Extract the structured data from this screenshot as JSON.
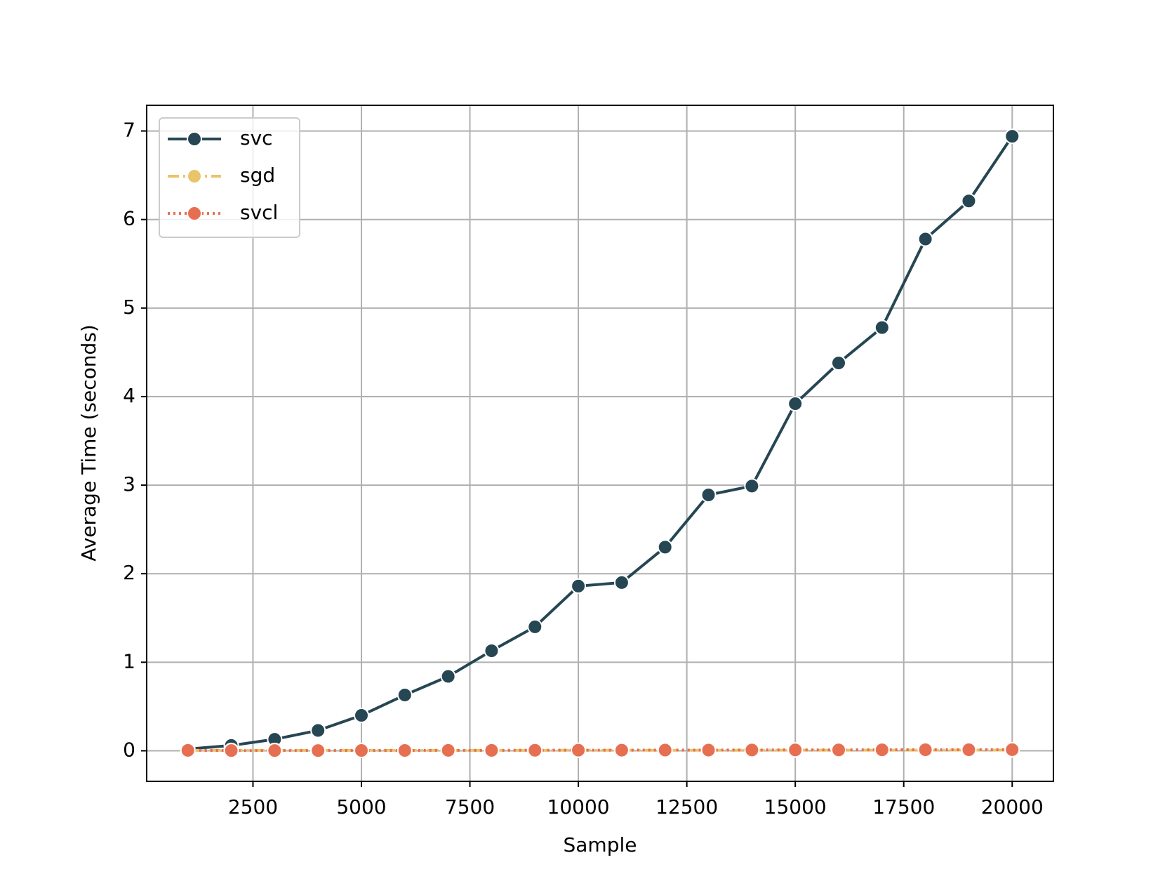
{
  "chart_data": {
    "type": "line",
    "x_label": "Sample",
    "y_label": "Average Time (seconds)",
    "x": [
      1000,
      2000,
      3000,
      4000,
      5000,
      6000,
      7000,
      8000,
      9000,
      10000,
      11000,
      12000,
      13000,
      14000,
      15000,
      16000,
      17000,
      18000,
      19000,
      20000
    ],
    "series": [
      {
        "name": "svc",
        "color": "#264653",
        "dash": "solid",
        "values": [
          0.02,
          0.06,
          0.13,
          0.23,
          0.4,
          0.63,
          0.84,
          1.13,
          1.4,
          1.86,
          1.9,
          2.3,
          2.89,
          2.99,
          3.92,
          4.38,
          4.78,
          5.78,
          6.21,
          6.94
        ]
      },
      {
        "name": "sgd",
        "color": "#e9c46a",
        "dash": "dashdot",
        "values": [
          0.005,
          0.005,
          0.005,
          0.005,
          0.005,
          0.005,
          0.005,
          0.005,
          0.005,
          0.006,
          0.006,
          0.006,
          0.006,
          0.006,
          0.007,
          0.007,
          0.007,
          0.007,
          0.008,
          0.008
        ]
      },
      {
        "name": "svcl",
        "color": "#e76f51",
        "dash": "dotted",
        "values": [
          0.005,
          0.003,
          0.003,
          0.003,
          0.004,
          0.004,
          0.005,
          0.005,
          0.006,
          0.007,
          0.007,
          0.008,
          0.008,
          0.009,
          0.01,
          0.01,
          0.011,
          0.012,
          0.012,
          0.013
        ]
      }
    ],
    "xlim": [
      50,
      20950
    ],
    "ylim": [
      -0.345,
      7.29
    ],
    "xticks": [
      2500,
      5000,
      7500,
      10000,
      12500,
      15000,
      17500,
      20000
    ],
    "yticks": [
      0,
      1,
      2,
      3,
      4,
      5,
      6,
      7
    ],
    "grid": true,
    "legend": "upper-left"
  }
}
